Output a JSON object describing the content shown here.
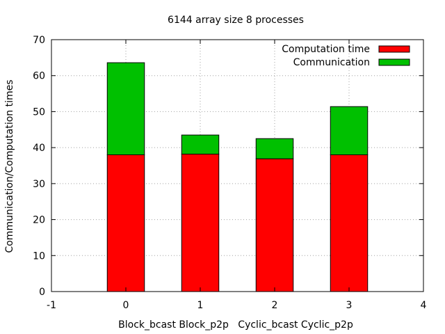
{
  "chart_data": {
    "type": "bar",
    "stacked": true,
    "title": "6144 array size 8 processes",
    "xlabel": "Block_bcast Block_p2p   Cyclic_bcast Cyclic_p2p",
    "ylabel": "Communication/Computation times",
    "xlim": [
      -1,
      4
    ],
    "ylim": [
      0,
      70
    ],
    "xticks": [
      -1,
      0,
      1,
      2,
      3,
      4
    ],
    "yticks": [
      0,
      10,
      20,
      30,
      40,
      50,
      60,
      70
    ],
    "grid": true,
    "legend_position": "top-right",
    "x": [
      0,
      1,
      2,
      3
    ],
    "series": [
      {
        "name": "Computation time",
        "color": "#ff0000",
        "values": [
          38.0,
          38.2,
          36.9,
          38.0
        ]
      },
      {
        "name": "Communication",
        "color": "#00c000",
        "values": [
          25.6,
          5.3,
          5.6,
          13.4
        ]
      }
    ]
  }
}
